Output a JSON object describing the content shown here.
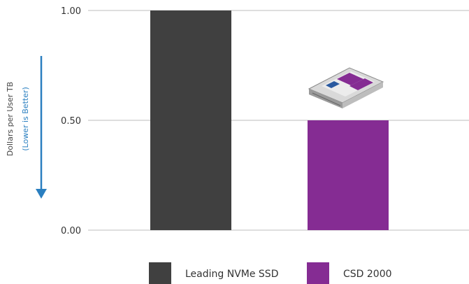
{
  "chart_data": {
    "type": "bar",
    "categories": [
      "Leading NVMe SSD",
      "CSD 2000"
    ],
    "values": [
      1.0,
      0.5
    ],
    "colors": [
      "#404040",
      "#852c93"
    ],
    "yticks": [
      "1.00",
      "0.50",
      "0.00"
    ],
    "ylim": [
      0,
      1
    ],
    "ylabel": "Dollars per User TB",
    "ylabel_note": "(Lower is Better)",
    "ylabel_note_color": "#2a7fc0",
    "grid": true,
    "legend": {
      "placement": "bottom",
      "entries": [
        "Leading NVMe SSD",
        "CSD 2000"
      ]
    },
    "annotation_icon": "ssd-drive-icon",
    "annotation_arrow_icon": "down-arrow-icon"
  }
}
